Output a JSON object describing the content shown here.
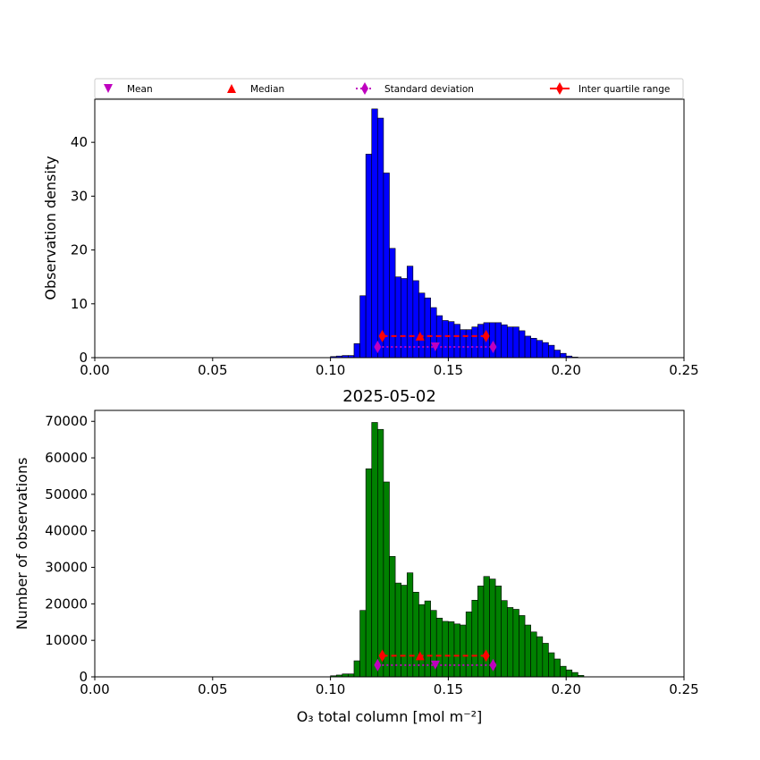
{
  "legend": {
    "mean": "Mean",
    "median": "Median",
    "std": "Standard deviation",
    "iqr": "Inter quartile range"
  },
  "colors": {
    "top_bars": "#0000ff",
    "bottom_bars": "#008000",
    "mean_marker": "#bf00bf",
    "median_marker": "#ff0000",
    "std_marker": "#bf00bf",
    "iqr_marker": "#ff0000"
  },
  "chart_data": [
    {
      "type": "bar",
      "title": "",
      "xlabel": "",
      "ylabel": "Observation density",
      "xlim": [
        0.0,
        0.25
      ],
      "ylim": [
        0,
        48
      ],
      "xticks": [
        "0.00",
        "0.05",
        "0.10",
        "0.15",
        "0.20",
        "0.25"
      ],
      "yticks": [
        "0",
        "10",
        "20",
        "30",
        "40"
      ],
      "bin_width": 0.0025,
      "bins_start": [
        0.1,
        0.1025,
        0.105,
        0.1075,
        0.11,
        0.1125,
        0.115,
        0.1175,
        0.12,
        0.1225,
        0.125,
        0.1275,
        0.13,
        0.1325,
        0.135,
        0.1375,
        0.14,
        0.1425,
        0.145,
        0.1475,
        0.15,
        0.1525,
        0.155,
        0.1575,
        0.16,
        0.1625,
        0.165,
        0.1675,
        0.17,
        0.1725,
        0.175,
        0.1775,
        0.18,
        0.1825,
        0.185,
        0.1875,
        0.19,
        0.1925,
        0.195,
        0.1975,
        0.2,
        0.2025,
        0.205
      ],
      "values": [
        0.2,
        0.3,
        0.4,
        0.4,
        2.6,
        11.5,
        37.8,
        46.2,
        44.5,
        34.3,
        20.3,
        15.0,
        14.7,
        17.0,
        14.3,
        12.0,
        11.1,
        9.3,
        7.8,
        6.9,
        6.7,
        6.2,
        5.2,
        5.2,
        5.7,
        6.2,
        6.5,
        6.5,
        6.5,
        6.1,
        5.7,
        5.7,
        5.0,
        4.0,
        3.6,
        3.2,
        2.8,
        2.3,
        1.4,
        0.8,
        0.3,
        0.1,
        0.0
      ],
      "stats": {
        "mean": {
          "x": 0.1445,
          "y": 2.0
        },
        "median": {
          "x": 0.138,
          "y": 4.0
        },
        "std": {
          "x": [
            0.12,
            0.169
          ],
          "y": 2.0
        },
        "iqr": {
          "x": [
            0.122,
            0.166
          ],
          "y": 4.0
        }
      }
    },
    {
      "type": "bar",
      "title": "2025-05-02",
      "xlabel": "O₃ total column [mol m⁻²]",
      "ylabel": "Number of observations",
      "xlim": [
        0.0,
        0.25
      ],
      "ylim": [
        0,
        73000
      ],
      "xticks": [
        "0.00",
        "0.05",
        "0.10",
        "0.15",
        "0.20",
        "0.25"
      ],
      "yticks": [
        "0",
        "10000",
        "20000",
        "30000",
        "40000",
        "50000",
        "60000",
        "70000"
      ],
      "bin_width": 0.0025,
      "bins_start": [
        0.1,
        0.1025,
        0.105,
        0.1075,
        0.11,
        0.1125,
        0.115,
        0.1175,
        0.12,
        0.1225,
        0.125,
        0.1275,
        0.13,
        0.1325,
        0.135,
        0.1375,
        0.14,
        0.1425,
        0.145,
        0.1475,
        0.15,
        0.1525,
        0.155,
        0.1575,
        0.16,
        0.1625,
        0.165,
        0.1675,
        0.17,
        0.1725,
        0.175,
        0.1775,
        0.18,
        0.1825,
        0.185,
        0.1875,
        0.19,
        0.1925,
        0.195,
        0.1975,
        0.2,
        0.2025,
        0.205
      ],
      "values": [
        300,
        500,
        800,
        800,
        4400,
        18200,
        57000,
        69700,
        67800,
        53400,
        33000,
        25700,
        25100,
        28500,
        23200,
        19800,
        20800,
        18200,
        16100,
        15200,
        15100,
        14500,
        14200,
        17800,
        21000,
        24900,
        27500,
        26800,
        24900,
        20900,
        19000,
        18500,
        16800,
        14200,
        12300,
        11000,
        9200,
        6600,
        4900,
        2900,
        1900,
        1200,
        400
      ],
      "stats": {
        "mean": {
          "x": 0.1445,
          "y": 3200
        },
        "median": {
          "x": 0.138,
          "y": 5800
        },
        "std": {
          "x": [
            0.12,
            0.169
          ],
          "y": 3200
        },
        "iqr": {
          "x": [
            0.122,
            0.166
          ],
          "y": 5800
        }
      }
    }
  ]
}
